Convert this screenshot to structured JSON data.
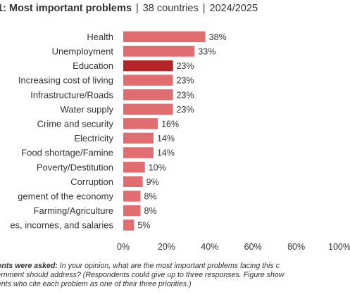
{
  "title": {
    "bold": "1: Most important problems",
    "sep1": "|",
    "countries": "38 countries",
    "sep2": "|",
    "years": "2024/2025"
  },
  "note": {
    "lead": "dents were asked:",
    "line1": " In your opinion, what are the most important problems facing this c",
    "line2": "vernment should address? (Respondents could give up to three responses. Figure show",
    "line3": "dents who cite each problem as one of their three priorities.)"
  },
  "colors": {
    "bar": "#e06d70",
    "highlight": "#b22428",
    "text": "#333333"
  },
  "chart_data": {
    "type": "bar",
    "orientation": "horizontal",
    "categories": [
      "Health",
      "Unemployment",
      "Education",
      "Increasing cost of living",
      "Infrastructure/Roads",
      "Water supply",
      "Crime and security",
      "Electricity",
      "Food shortage/Famine",
      "Poverty/Destitution",
      "Corruption",
      "gement of the economy",
      "Farming/Agriculture",
      "es, incomes, and salaries"
    ],
    "values": [
      38,
      33,
      23,
      23,
      23,
      23,
      16,
      14,
      14,
      10,
      9,
      8,
      8,
      5
    ],
    "value_labels": [
      "38%",
      "33%",
      "23%",
      "23%",
      "23%",
      "23%",
      "16%",
      "14%",
      "14%",
      "10%",
      "9%",
      "8%",
      "8%",
      "5%"
    ],
    "highlight_index": 2,
    "xlim": [
      0,
      100
    ],
    "xticks": [
      "0%",
      "20%",
      "40%",
      "60%",
      "80%",
      "100%"
    ],
    "grid": false,
    "legend": "none"
  }
}
